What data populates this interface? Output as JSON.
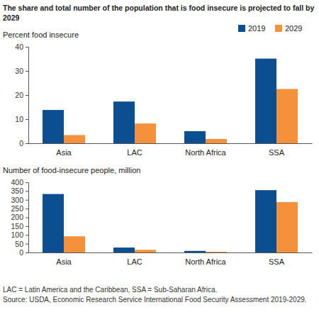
{
  "chart_data": [
    {
      "type": "bar",
      "title": "The share and total number of the population that is food insecure is projected to fall by 2029",
      "ylabel": "Percent food insecure",
      "categories": [
        "Asia",
        "LAC",
        "North Africa",
        "SSA"
      ],
      "series": [
        {
          "name": "2019",
          "color": "#0b4f91",
          "values": [
            13.8,
            17.3,
            5.0,
            35.1
          ]
        },
        {
          "name": "2029",
          "color": "#f5913a",
          "values": [
            3.4,
            8.2,
            1.8,
            22.5
          ]
        }
      ],
      "ylim": [
        0,
        40
      ],
      "yticks": [
        0,
        10,
        20,
        30,
        40
      ],
      "grid": false,
      "legend": "top-right"
    },
    {
      "type": "bar",
      "ylabel": "Number of food-insecure people, million",
      "categories": [
        "Asia",
        "LAC",
        "North Africa",
        "SSA"
      ],
      "series": [
        {
          "name": "2019",
          "color": "#0b4f91",
          "values": [
            333,
            28,
            9,
            355
          ]
        },
        {
          "name": "2029",
          "color": "#f5913a",
          "values": [
            92,
            15,
            4,
            287
          ]
        }
      ],
      "ylim": [
        0,
        400
      ],
      "yticks": [
        0,
        50,
        100,
        150,
        200,
        250,
        300,
        350,
        400
      ],
      "grid": false,
      "annotations": [
        "LAC = Latin America and the Caribbean, SSA = Sub-Saharan Africa.",
        "Source: USDA, Economic Research Service International Food Security Assessment 2019-2029."
      ]
    }
  ]
}
